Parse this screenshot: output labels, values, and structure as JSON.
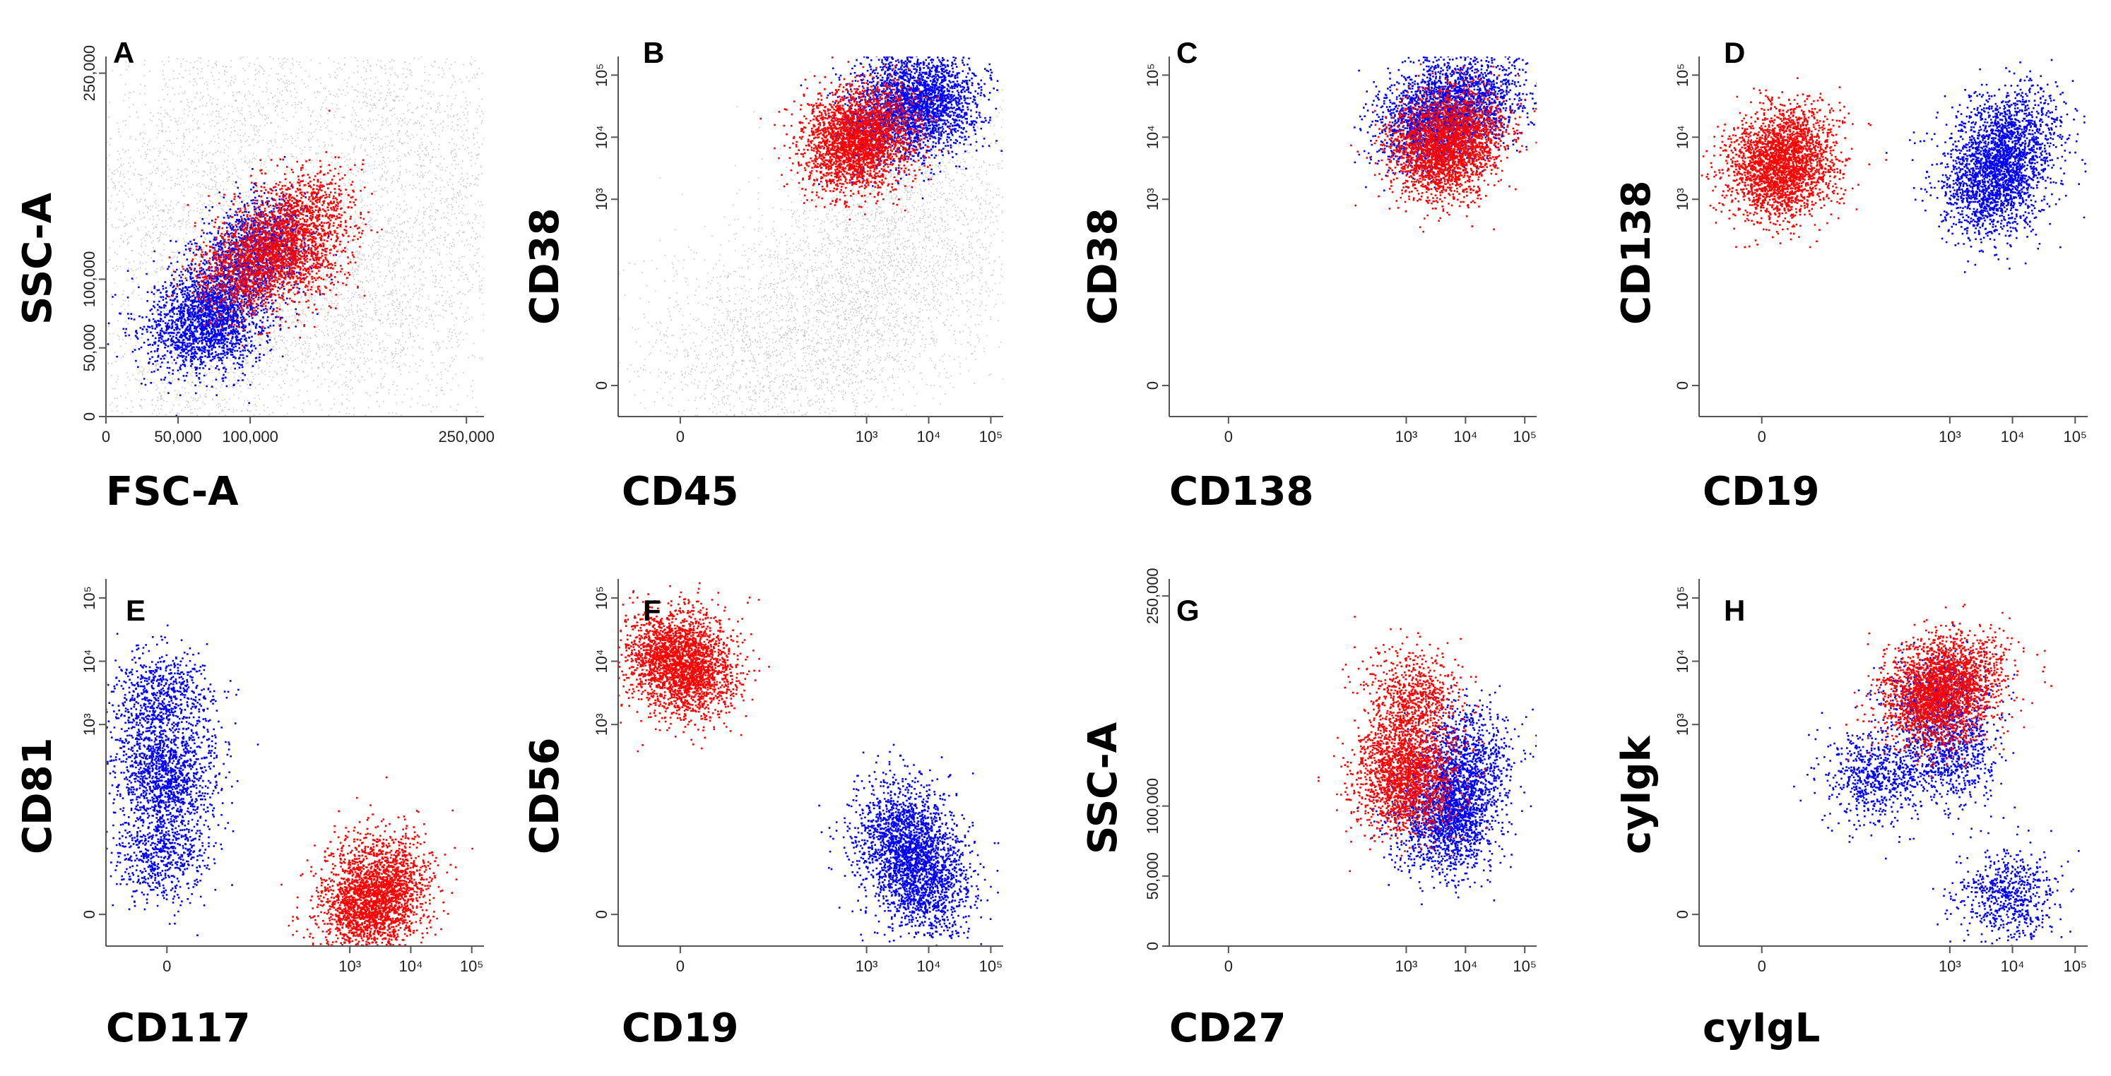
{
  "figure": {
    "background": "#ffffff"
  },
  "colors": {
    "background_events": "#c8c8c8",
    "population_1": "#0000ff",
    "population_2": "#ff0000"
  },
  "chart_data": [
    {
      "panel": "A",
      "type": "scatter",
      "xlabel": "FSC-A",
      "ylabel": "SSC-A",
      "x_scale": "linear",
      "y_scale": "linear",
      "xlim": [
        0,
        262144
      ],
      "ylim": [
        0,
        262144
      ],
      "x_ticks": [
        {
          "v": 0,
          "label": "0"
        },
        {
          "v": 50000,
          "label": "50,000"
        },
        {
          "v": 100000,
          "label": "100,000"
        },
        {
          "v": 250000,
          "label": "250,000"
        }
      ],
      "y_ticks": [
        {
          "v": 0,
          "label": "0"
        },
        {
          "v": 50000,
          "label": "50,000"
        },
        {
          "v": 100000,
          "label": "100,000"
        },
        {
          "v": 250000,
          "label": "250,000"
        }
      ],
      "series": [
        {
          "name": "background events",
          "color": "#c8c8c8",
          "points": [
            [
              130000,
              90000
            ],
            [
              40000,
              150000
            ],
            [
              230000,
              150000
            ],
            [
              60000,
              25000
            ],
            [
              190000,
              70000
            ],
            [
              90000,
              230000
            ],
            [
              200000,
              230000
            ]
          ]
        },
        {
          "name": "blue population",
          "color": "#0000ff",
          "points": [
            [
              70000,
              80000
            ],
            [
              55000,
              60000
            ],
            [
              95000,
              110000
            ],
            [
              110000,
              130000
            ],
            [
              80000,
              70000
            ]
          ]
        },
        {
          "name": "red population",
          "color": "#ff0000",
          "points": [
            [
              110000,
              125000
            ],
            [
              95000,
              105000
            ],
            [
              140000,
              150000
            ],
            [
              130000,
              115000
            ]
          ]
        }
      ]
    },
    {
      "panel": "B",
      "type": "scatter",
      "xlabel": "CD45",
      "ylabel": "CD38",
      "x_scale": "biexponential",
      "y_scale": "biexponential",
      "xlim": [
        -1.0,
        5.2
      ],
      "ylim": [
        -0.5,
        5.3
      ],
      "x_ticks": [
        {
          "v": 0,
          "label": "0"
        },
        {
          "v": 3,
          "label": "10³"
        },
        {
          "v": 4,
          "label": "10⁴"
        },
        {
          "v": 5,
          "label": "10⁵"
        }
      ],
      "y_ticks": [
        {
          "v": 0,
          "label": "0"
        },
        {
          "v": 3,
          "label": "10³"
        },
        {
          "v": 4,
          "label": "10⁴"
        },
        {
          "v": 5,
          "label": "10⁵"
        }
      ],
      "series": [
        {
          "name": "background events",
          "color": "#c8c8c8",
          "points": [
            [
              2.0,
              0.8
            ],
            [
              3.5,
              2.2
            ],
            [
              4.0,
              3.3
            ],
            [
              1.0,
              0.4
            ],
            [
              3.0,
              1.5
            ]
          ]
        },
        {
          "name": "blue population",
          "color": "#0000ff",
          "points": [
            [
              3.8,
              4.5
            ],
            [
              3.3,
              4.2
            ],
            [
              4.2,
              4.6
            ],
            [
              3.6,
              4.8
            ]
          ]
        },
        {
          "name": "red population",
          "color": "#ff0000",
          "points": [
            [
              2.8,
              4.0
            ],
            [
              2.6,
              3.8
            ],
            [
              3.1,
              4.2
            ],
            [
              2.9,
              3.9
            ]
          ]
        }
      ]
    },
    {
      "panel": "C",
      "type": "scatter",
      "xlabel": "CD138",
      "ylabel": "CD38",
      "x_scale": "biexponential",
      "y_scale": "biexponential",
      "xlim": [
        -1.0,
        5.2
      ],
      "ylim": [
        -0.5,
        5.3
      ],
      "x_ticks": [
        {
          "v": 0,
          "label": "0"
        },
        {
          "v": 3,
          "label": "10³"
        },
        {
          "v": 4,
          "label": "10⁴"
        },
        {
          "v": 5,
          "label": "10⁵"
        }
      ],
      "y_ticks": [
        {
          "v": 0,
          "label": "0"
        },
        {
          "v": 3,
          "label": "10³"
        },
        {
          "v": 4,
          "label": "10⁴"
        },
        {
          "v": 5,
          "label": "10⁵"
        }
      ],
      "series": [
        {
          "name": "blue population",
          "color": "#0000ff",
          "points": [
            [
              3.7,
              4.5
            ],
            [
              3.2,
              4.2
            ],
            [
              4.3,
              4.7
            ],
            [
              3.5,
              4.3
            ]
          ]
        },
        {
          "name": "red population",
          "color": "#ff0000",
          "points": [
            [
              3.7,
              4.0
            ],
            [
              3.4,
              3.8
            ],
            [
              4.0,
              4.1
            ],
            [
              3.6,
              3.7
            ]
          ]
        }
      ]
    },
    {
      "panel": "D",
      "type": "scatter",
      "xlabel": "CD19",
      "ylabel": "CD138",
      "x_scale": "biexponential",
      "y_scale": "biexponential",
      "xlim": [
        -1.0,
        5.2
      ],
      "ylim": [
        -0.5,
        5.3
      ],
      "x_ticks": [
        {
          "v": 0,
          "label": "0"
        },
        {
          "v": 3,
          "label": "10³"
        },
        {
          "v": 4,
          "label": "10⁴"
        },
        {
          "v": 5,
          "label": "10⁵"
        }
      ],
      "y_ticks": [
        {
          "v": 0,
          "label": "0"
        },
        {
          "v": 3,
          "label": "10³"
        },
        {
          "v": 4,
          "label": "10⁴"
        },
        {
          "v": 5,
          "label": "10⁵"
        }
      ],
      "series": [
        {
          "name": "blue population",
          "color": "#0000ff",
          "points": [
            [
              3.8,
              3.6
            ],
            [
              3.6,
              3.0
            ],
            [
              4.0,
              4.2
            ],
            [
              3.7,
              3.5
            ]
          ]
        },
        {
          "name": "red population",
          "color": "#ff0000",
          "points": [
            [
              0.3,
              3.7
            ],
            [
              0.1,
              3.5
            ],
            [
              0.5,
              3.9
            ],
            [
              0.3,
              3.3
            ]
          ]
        }
      ]
    },
    {
      "panel": "E",
      "type": "scatter",
      "xlabel": "CD117",
      "ylabel": "CD81",
      "x_scale": "biexponential",
      "y_scale": "biexponential",
      "xlim": [
        -1.0,
        5.2
      ],
      "ylim": [
        -0.5,
        5.3
      ],
      "x_ticks": [
        {
          "v": 0,
          "label": "0"
        },
        {
          "v": 3,
          "label": "10³"
        },
        {
          "v": 4,
          "label": "10⁴"
        },
        {
          "v": 5,
          "label": "10⁵"
        }
      ],
      "y_ticks": [
        {
          "v": 0,
          "label": "0"
        },
        {
          "v": 3,
          "label": "10³"
        },
        {
          "v": 4,
          "label": "10⁴"
        },
        {
          "v": 5,
          "label": "10⁵"
        }
      ],
      "series": [
        {
          "name": "blue population",
          "color": "#0000ff",
          "points": [
            [
              -0.1,
              2.5
            ],
            [
              -0.1,
              3.5
            ],
            [
              -0.1,
              1.0
            ],
            [
              0.0,
              2.0
            ]
          ]
        },
        {
          "name": "red population",
          "color": "#ff0000",
          "points": [
            [
              3.4,
              0.3
            ],
            [
              3.2,
              0.0
            ],
            [
              3.6,
              0.7
            ],
            [
              3.4,
              0.2
            ]
          ]
        }
      ]
    },
    {
      "panel": "F",
      "type": "scatter",
      "xlabel": "CD19",
      "ylabel": "CD56",
      "x_scale": "biexponential",
      "y_scale": "biexponential",
      "xlim": [
        -1.0,
        5.2
      ],
      "ylim": [
        -0.5,
        5.3
      ],
      "x_ticks": [
        {
          "v": 0,
          "label": "0"
        },
        {
          "v": 3,
          "label": "10³"
        },
        {
          "v": 4,
          "label": "10⁴"
        },
        {
          "v": 5,
          "label": "10⁵"
        }
      ],
      "y_ticks": [
        {
          "v": 0,
          "label": "0"
        },
        {
          "v": 3,
          "label": "10³"
        },
        {
          "v": 4,
          "label": "10⁴"
        },
        {
          "v": 5,
          "label": "10⁵"
        }
      ],
      "series": [
        {
          "name": "blue population",
          "color": "#0000ff",
          "points": [
            [
              3.8,
              0.8
            ],
            [
              3.5,
              1.5
            ],
            [
              4.0,
              0.3
            ],
            [
              3.6,
              1.0
            ]
          ]
        },
        {
          "name": "red population",
          "color": "#ff0000",
          "points": [
            [
              0.0,
              4.0
            ],
            [
              -0.2,
              4.2
            ],
            [
              0.2,
              3.7
            ],
            [
              0.0,
              4.0
            ]
          ]
        }
      ]
    },
    {
      "panel": "G",
      "type": "scatter",
      "xlabel": "CD27",
      "ylabel": "SSC-A",
      "x_scale": "biexponential",
      "y_scale": "linear",
      "xlim": [
        -1.0,
        5.2
      ],
      "ylim": [
        0,
        262144
      ],
      "x_ticks": [
        {
          "v": 0,
          "label": "0"
        },
        {
          "v": 3,
          "label": "10³"
        },
        {
          "v": 4,
          "label": "10⁴"
        },
        {
          "v": 5,
          "label": "10⁵"
        }
      ],
      "y_ticks": [
        {
          "v": 0,
          "label": "0"
        },
        {
          "v": 50000,
          "label": "50,000"
        },
        {
          "v": 100000,
          "label": "100,000"
        },
        {
          "v": 250000,
          "label": "250,000"
        }
      ],
      "series": [
        {
          "name": "blue population",
          "color": "#0000ff",
          "points": [
            [
              3.8,
              110000
            ],
            [
              3.6,
              80000
            ],
            [
              4.0,
              140000
            ],
            [
              3.7,
              100000
            ]
          ]
        },
        {
          "name": "red population",
          "color": "#ff0000",
          "points": [
            [
              3.0,
              140000
            ],
            [
              2.9,
              110000
            ],
            [
              3.1,
              180000
            ],
            [
              3.0,
              120000
            ]
          ]
        }
      ]
    },
    {
      "panel": "H",
      "type": "scatter",
      "xlabel": "cyIgL",
      "ylabel": "cyIgk",
      "x_scale": "biexponential",
      "y_scale": "biexponential",
      "xlim": [
        -1.0,
        5.2
      ],
      "ylim": [
        -0.5,
        5.3
      ],
      "x_ticks": [
        {
          "v": 0,
          "label": "0"
        },
        {
          "v": 3,
          "label": "10³"
        },
        {
          "v": 4,
          "label": "10⁴"
        },
        {
          "v": 5,
          "label": "10⁵"
        }
      ],
      "y_ticks": [
        {
          "v": 0,
          "label": "0"
        },
        {
          "v": 3,
          "label": "10³"
        },
        {
          "v": 4,
          "label": "10⁴"
        },
        {
          "v": 5,
          "label": "10⁵"
        }
      ],
      "series": [
        {
          "name": "blue population",
          "color": "#0000ff",
          "points": [
            [
              2.8,
              3.4
            ],
            [
              3.9,
              0.3
            ],
            [
              1.8,
              2.2
            ],
            [
              3.0,
              2.5
            ]
          ]
        },
        {
          "name": "red population",
          "color": "#ff0000",
          "points": [
            [
              2.8,
              3.6
            ],
            [
              2.6,
              3.3
            ],
            [
              3.2,
              3.8
            ],
            [
              2.8,
              3.5
            ]
          ]
        }
      ]
    }
  ]
}
